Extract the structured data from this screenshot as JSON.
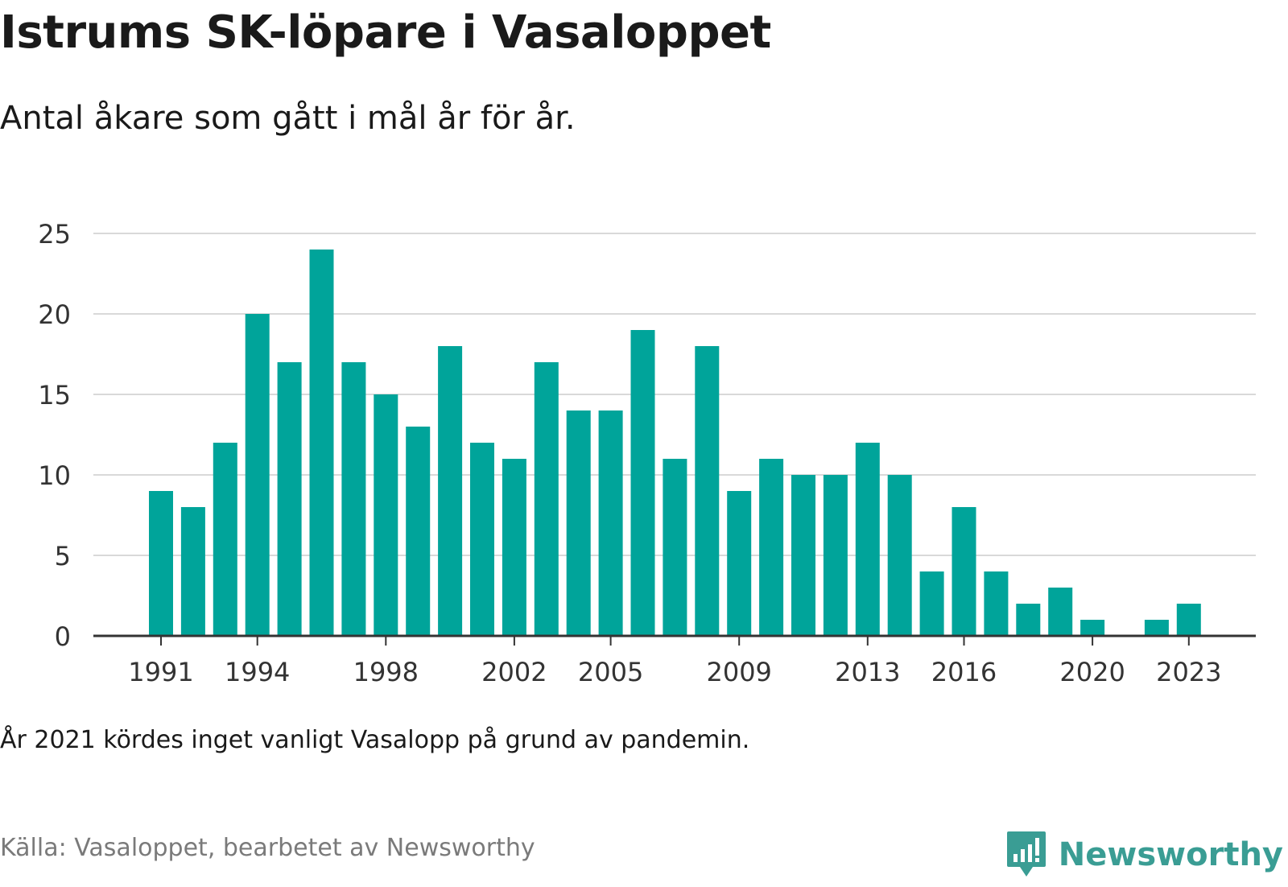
{
  "title": "Istrums SK-löpare i Vasaloppet",
  "subtitle": "Antal åkare som gått i mål år för år.",
  "note": "År 2021 kördes inget vanligt Vasalopp på grund av pandemin.",
  "source": "Källa: Vasaloppet, bearbetet av Newsworthy",
  "logo": {
    "text": "Newsworthy",
    "icon": "chart-bubble-icon"
  },
  "colors": {
    "bar": "#00a49a",
    "grid": "#d9d9d9",
    "axis": "#333333",
    "brand": "#3a9d94"
  },
  "chart_data": {
    "type": "bar",
    "categories": [
      "1991",
      "1992",
      "1993",
      "1994",
      "1995",
      "1996",
      "1997",
      "1998",
      "1999",
      "2000",
      "2001",
      "2002",
      "2003",
      "2004",
      "2005",
      "2006",
      "2007",
      "2008",
      "2009",
      "2010",
      "2011",
      "2012",
      "2013",
      "2014",
      "2015",
      "2016",
      "2017",
      "2018",
      "2019",
      "2020",
      "2021",
      "2022",
      "2023"
    ],
    "values": [
      9,
      8,
      12,
      20,
      17,
      24,
      17,
      15,
      13,
      18,
      12,
      11,
      17,
      14,
      14,
      19,
      11,
      18,
      9,
      11,
      10,
      10,
      12,
      10,
      4,
      8,
      4,
      2,
      3,
      1,
      0,
      1,
      2
    ],
    "x_tick_labels": [
      "1991",
      "1994",
      "1998",
      "2002",
      "2005",
      "2009",
      "2013",
      "2016",
      "2020",
      "2023"
    ],
    "y_ticks": [
      0,
      5,
      10,
      15,
      20,
      25
    ],
    "ylim": [
      0,
      25
    ],
    "xlabel": "",
    "ylabel": "",
    "grid": true,
    "legend": "none"
  }
}
